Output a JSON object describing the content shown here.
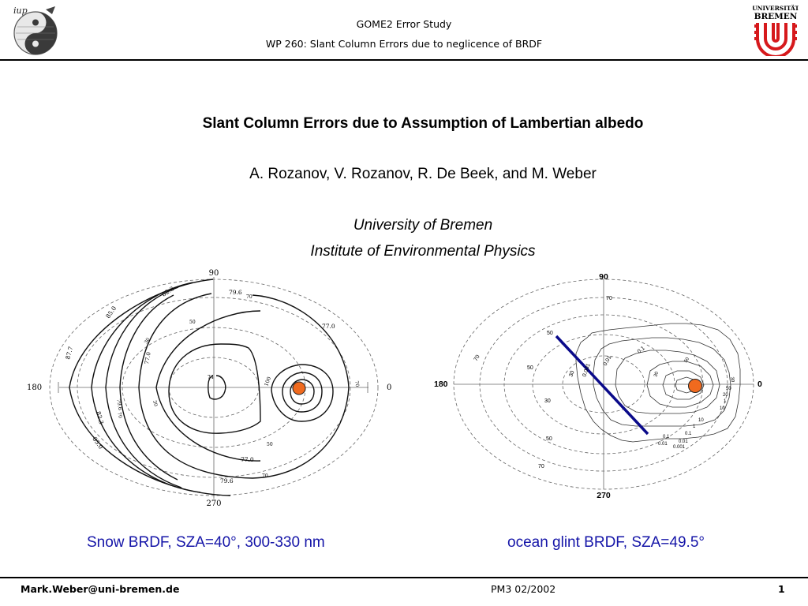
{
  "header": {
    "line1": "GOME2 Error Study",
    "line2": "WP 260: Slant Column Errors due to neglicence of  BRDF",
    "logo_left_text": "iup",
    "logo_right_line1": "UNIVERSITÄT",
    "logo_right_line2": "BREMEN"
  },
  "title": "Slant Column Errors due to Assumption of Lambertian albedo",
  "authors": "A. Rozanov, V. Rozanov, R. De Beek, and M. Weber",
  "affiliation": {
    "line1": "University of Bremen",
    "line2": "Institute of Environmental Physics"
  },
  "plots": {
    "left": {
      "azimuth_labels": {
        "top": "90",
        "left": "180",
        "right": "0",
        "bottom": "270"
      },
      "contour_labels": [
        "82.3",
        "85.0",
        "87.7",
        "79.6",
        "70",
        "50",
        "30",
        "77.0",
        "74",
        "79.6",
        "82.3",
        "85.0",
        "77.0",
        "79.6",
        "70",
        "50",
        "70",
        "30",
        "100",
        "77.0",
        "70"
      ]
    },
    "right": {
      "azimuth_labels": {
        "top": "90",
        "left": "180",
        "right": "0",
        "bottom": "270"
      },
      "contour_labels": [
        "70",
        "50",
        "30",
        "50",
        "70",
        "70",
        "50",
        "30",
        "0.1",
        "0.01",
        "0.001",
        "0.01",
        "0.1",
        "1",
        "10",
        "20",
        "50",
        "30",
        "0.01",
        "0.1",
        "1",
        "10",
        "0.001",
        "50",
        "30"
      ]
    }
  },
  "captions": {
    "left": "Snow BRDF, SZA=40°, 300-330 nm",
    "right": "ocean glint  BRDF, SZA=49.5°"
  },
  "footer": {
    "email": "Mark.Weber@uni-bremen.de",
    "center": "PM3 02/2002",
    "page": "1"
  },
  "colors": {
    "caption": "#1515a8",
    "sun_marker": "#f06a1e",
    "glint_line": "#0a0a8a",
    "logo_red": "#d6191c"
  }
}
